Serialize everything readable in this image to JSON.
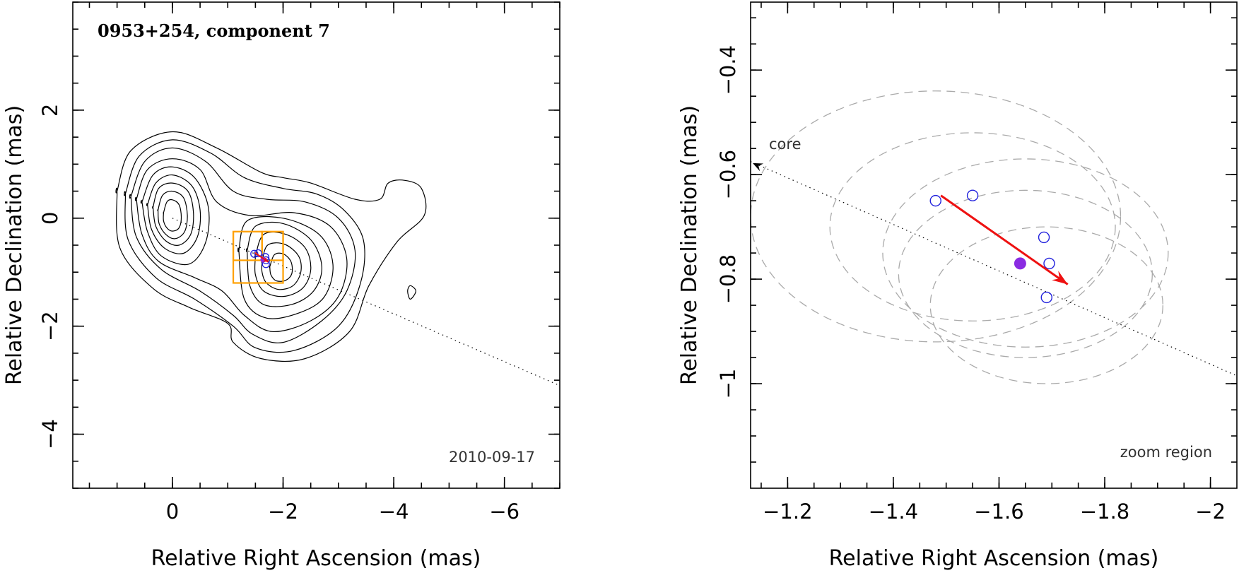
{
  "chart_data": [
    {
      "type": "scatter",
      "title": "0953+254, component 7",
      "date_label": "2010-09-17",
      "xlabel": "Relative Right Ascension (mas)",
      "ylabel": "Relative Declination (mas)",
      "xlim": [
        1.8,
        -7
      ],
      "ylim": [
        -5,
        4
      ],
      "x_ticks": [
        0,
        -2,
        -4,
        -6
      ],
      "x_tick_labels": [
        "0",
        "−2",
        "−4",
        "−6"
      ],
      "y_ticks": [
        2,
        0,
        -2,
        -4
      ],
      "y_tick_labels": [
        "2",
        "0",
        "−2",
        "−4"
      ],
      "jet_axis": {
        "from": [
          0,
          0
        ],
        "to": [
          -7,
          -3.1
        ]
      },
      "contours": [
        {
          "level": 1,
          "points": [
            [
              -4.4,
              -1.35
            ],
            [
              -4.3,
              -1.25
            ],
            [
              -4.25,
              -1.35
            ],
            [
              -4.3,
              -1.5
            ]
          ]
        },
        {
          "level": 1,
          "points": [
            [
              1.0,
              0.5
            ],
            [
              0.75,
              1.25
            ],
            [
              0.0,
              1.6
            ],
            [
              -0.8,
              1.3
            ],
            [
              -1.6,
              0.85
            ],
            [
              -2.0,
              0.75
            ],
            [
              -2.5,
              0.65
            ],
            [
              -3.3,
              0.35
            ],
            [
              -3.75,
              0.35
            ],
            [
              -3.9,
              0.65
            ],
            [
              -4.2,
              0.7
            ],
            [
              -4.5,
              0.55
            ],
            [
              -4.55,
              0.05
            ],
            [
              -4.05,
              -0.45
            ],
            [
              -3.55,
              -1.25
            ],
            [
              -3.2,
              -2.1
            ],
            [
              -2.4,
              -2.6
            ],
            [
              -1.6,
              -2.6
            ],
            [
              -1.1,
              -2.3
            ],
            [
              -1.0,
              -1.95
            ],
            [
              -0.3,
              -1.65
            ],
            [
              0.35,
              -1.3
            ],
            [
              0.95,
              -0.55
            ],
            [
              1.0,
              0.5
            ]
          ]
        },
        {
          "level": 2,
          "points": [
            [
              0.85,
              0.45
            ],
            [
              0.6,
              1.15
            ],
            [
              0.0,
              1.45
            ],
            [
              -0.7,
              1.2
            ],
            [
              -1.3,
              0.75
            ],
            [
              -2.0,
              0.55
            ],
            [
              -2.6,
              0.45
            ],
            [
              -3.1,
              0.15
            ],
            [
              -3.45,
              -0.4
            ],
            [
              -3.4,
              -1.2
            ],
            [
              -3.0,
              -2.0
            ],
            [
              -2.2,
              -2.45
            ],
            [
              -1.5,
              -2.4
            ],
            [
              -1.1,
              -2.0
            ],
            [
              -0.4,
              -1.5
            ],
            [
              0.3,
              -1.1
            ],
            [
              0.8,
              -0.4
            ],
            [
              0.85,
              0.45
            ]
          ]
        },
        {
          "level": 3,
          "points": [
            [
              0.75,
              0.4
            ],
            [
              0.5,
              1.05
            ],
            [
              0.0,
              1.3
            ],
            [
              -0.6,
              1.05
            ],
            [
              -1.1,
              0.5
            ],
            [
              -1.7,
              0.35
            ],
            [
              -2.4,
              0.3
            ],
            [
              -3.0,
              0.0
            ],
            [
              -3.3,
              -0.6
            ],
            [
              -3.15,
              -1.35
            ],
            [
              -2.7,
              -1.9
            ],
            [
              -2.0,
              -2.3
            ],
            [
              -1.45,
              -2.15
            ],
            [
              -1.1,
              -1.8
            ],
            [
              -0.5,
              -1.35
            ],
            [
              0.2,
              -0.95
            ],
            [
              0.65,
              -0.35
            ],
            [
              0.75,
              0.4
            ]
          ]
        },
        {
          "level": 4,
          "points": [
            [
              0.65,
              0.35
            ],
            [
              0.45,
              0.9
            ],
            [
              0.0,
              1.1
            ],
            [
              -0.5,
              0.9
            ],
            [
              -0.8,
              0.3
            ],
            [
              -1.4,
              0.05
            ],
            [
              -2.2,
              0.1
            ],
            [
              -2.85,
              -0.15
            ],
            [
              -3.15,
              -0.75
            ],
            [
              -3.0,
              -1.45
            ],
            [
              -2.5,
              -1.9
            ],
            [
              -1.8,
              -2.1
            ],
            [
              -1.3,
              -1.8
            ],
            [
              -0.9,
              -1.35
            ],
            [
              -0.4,
              -1.1
            ],
            [
              0.25,
              -0.8
            ],
            [
              0.55,
              -0.3
            ],
            [
              0.65,
              0.35
            ]
          ]
        },
        {
          "level": 5,
          "points": [
            [
              0.55,
              0.3
            ],
            [
              0.35,
              0.8
            ],
            [
              0.0,
              0.95
            ],
            [
              -0.4,
              0.75
            ],
            [
              -0.65,
              0.2
            ],
            [
              -0.6,
              -0.45
            ],
            [
              -0.3,
              -0.85
            ],
            [
              0.2,
              -0.7
            ],
            [
              0.45,
              -0.25
            ],
            [
              0.55,
              0.3
            ]
          ]
        },
        {
          "level": 5,
          "points": [
            [
              -1.2,
              -0.6
            ],
            [
              -1.35,
              -0.05
            ],
            [
              -2.0,
              0.0
            ],
            [
              -2.65,
              -0.3
            ],
            [
              -2.9,
              -0.85
            ],
            [
              -2.75,
              -1.45
            ],
            [
              -2.3,
              -1.75
            ],
            [
              -1.7,
              -1.85
            ],
            [
              -1.3,
              -1.5
            ],
            [
              -1.2,
              -0.6
            ]
          ]
        },
        {
          "level": 6,
          "points": [
            [
              0.45,
              0.25
            ],
            [
              0.3,
              0.65
            ],
            [
              0.0,
              0.8
            ],
            [
              -0.35,
              0.6
            ],
            [
              -0.5,
              0.15
            ],
            [
              -0.45,
              -0.35
            ],
            [
              -0.2,
              -0.65
            ],
            [
              0.15,
              -0.55
            ],
            [
              0.38,
              -0.2
            ],
            [
              0.45,
              0.25
            ]
          ]
        },
        {
          "level": 6,
          "points": [
            [
              -1.35,
              -0.6
            ],
            [
              -1.5,
              -0.15
            ],
            [
              -2.0,
              -0.1
            ],
            [
              -2.5,
              -0.4
            ],
            [
              -2.7,
              -0.9
            ],
            [
              -2.55,
              -1.35
            ],
            [
              -2.15,
              -1.6
            ],
            [
              -1.65,
              -1.6
            ],
            [
              -1.4,
              -1.25
            ],
            [
              -1.35,
              -0.6
            ]
          ]
        },
        {
          "level": 7,
          "points": [
            [
              0.35,
              0.2
            ],
            [
              0.25,
              0.55
            ],
            [
              0.0,
              0.65
            ],
            [
              -0.28,
              0.5
            ],
            [
              -0.38,
              0.1
            ],
            [
              -0.33,
              -0.3
            ],
            [
              -0.12,
              -0.5
            ],
            [
              0.12,
              -0.42
            ],
            [
              0.3,
              -0.15
            ],
            [
              0.35,
              0.2
            ]
          ]
        },
        {
          "level": 7,
          "points": [
            [
              -1.5,
              -0.7
            ],
            [
              -1.65,
              -0.3
            ],
            [
              -2.05,
              -0.3
            ],
            [
              -2.4,
              -0.55
            ],
            [
              -2.5,
              -0.95
            ],
            [
              -2.35,
              -1.3
            ],
            [
              -2.0,
              -1.45
            ],
            [
              -1.65,
              -1.35
            ],
            [
              -1.5,
              -1.05
            ],
            [
              -1.5,
              -0.7
            ]
          ]
        },
        {
          "level": 8,
          "points": [
            [
              0.26,
              0.15
            ],
            [
              0.18,
              0.42
            ],
            [
              0.0,
              0.5
            ],
            [
              -0.2,
              0.38
            ],
            [
              -0.27,
              0.05
            ],
            [
              -0.22,
              -0.25
            ],
            [
              -0.05,
              -0.38
            ],
            [
              0.12,
              -0.3
            ],
            [
              0.24,
              -0.1
            ],
            [
              0.26,
              0.15
            ]
          ]
        },
        {
          "level": 8,
          "points": [
            [
              -1.62,
              -0.8
            ],
            [
              -1.72,
              -0.5
            ],
            [
              -2.02,
              -0.48
            ],
            [
              -2.28,
              -0.7
            ],
            [
              -2.32,
              -1.0
            ],
            [
              -2.18,
              -1.25
            ],
            [
              -1.92,
              -1.32
            ],
            [
              -1.7,
              -1.2
            ],
            [
              -1.62,
              -1.0
            ],
            [
              -1.62,
              -0.8
            ]
          ]
        },
        {
          "level": 9,
          "points": [
            [
              0.16,
              0.1
            ],
            [
              0.1,
              0.3
            ],
            [
              0.0,
              0.34
            ],
            [
              -0.12,
              0.25
            ],
            [
              -0.16,
              0.02
            ],
            [
              -0.12,
              -0.18
            ],
            [
              0.0,
              -0.24
            ],
            [
              0.1,
              -0.18
            ],
            [
              0.16,
              -0.05
            ],
            [
              0.16,
              0.1
            ]
          ]
        },
        {
          "level": 9,
          "points": [
            [
              -1.76,
              -0.9
            ],
            [
              -1.84,
              -0.68
            ],
            [
              -2.0,
              -0.66
            ],
            [
              -2.14,
              -0.8
            ],
            [
              -2.16,
              -1.02
            ],
            [
              -2.05,
              -1.15
            ],
            [
              -1.88,
              -1.16
            ],
            [
              -1.78,
              -1.05
            ],
            [
              -1.76,
              -0.9
            ]
          ]
        }
      ],
      "zoom_boxes": [
        {
          "x": [
            -1.1,
            -2.0
          ],
          "y": [
            -0.25,
            -1.2
          ]
        },
        {
          "x": [
            -1.1,
            -1.62
          ],
          "y": [
            -0.25,
            -0.78
          ]
        },
        {
          "x": [
            -1.62,
            -2.0
          ],
          "y": [
            -0.25,
            -0.78
          ]
        }
      ],
      "points": [
        [
          -1.48,
          -0.66
        ],
        [
          -1.55,
          -0.65
        ],
        [
          -1.68,
          -0.72
        ],
        [
          -1.69,
          -0.78
        ],
        [
          -1.69,
          -0.85
        ]
      ],
      "mean_point": [
        -1.64,
        -0.77
      ],
      "motion_vector": {
        "from": [
          -1.49,
          -0.64
        ],
        "to": [
          -1.73,
          -0.81
        ]
      }
    },
    {
      "type": "scatter",
      "label_core": "core",
      "label_region": "zoom region",
      "xlabel": "Relative Right Ascension (mas)",
      "ylabel": "Relative Declination (mas)",
      "xlim": [
        -1.13,
        -2.05
      ],
      "ylim": [
        -1.2,
        -0.27
      ],
      "x_ticks": [
        -1.2,
        -1.4,
        -1.6,
        -1.8,
        -2.0
      ],
      "x_tick_labels": [
        "−1.2",
        "−1.4",
        "−1.6",
        "−1.8",
        "−2"
      ],
      "y_ticks": [
        -0.4,
        -0.6,
        -0.8,
        -1.0
      ],
      "y_tick_labels": [
        "−0.4",
        "−0.6",
        "−0.8",
        "−1"
      ],
      "points": [
        [
          -1.48,
          -0.65
        ],
        [
          -1.55,
          -0.64
        ],
        [
          -1.685,
          -0.72
        ],
        [
          -1.695,
          -0.77
        ],
        [
          -1.69,
          -0.835
        ]
      ],
      "mean_point": [
        -1.64,
        -0.77
      ],
      "motion_vector": {
        "from": [
          -1.49,
          -0.64
        ],
        "to": [
          -1.73,
          -0.81
        ]
      },
      "jet_axis": {
        "from": [
          -1.13,
          -0.575
        ],
        "to": [
          -2.05,
          -0.985
        ]
      },
      "core_arrow": {
        "from": [
          -1.19,
          -0.605
        ],
        "to": [
          -1.13,
          -0.578
        ]
      },
      "error_ellipses": [
        {
          "cx": -1.48,
          "cy": -0.68,
          "rx": 0.35,
          "ry": 0.24
        },
        {
          "cx": -1.55,
          "cy": -0.7,
          "rx": 0.27,
          "ry": 0.18
        },
        {
          "cx": -1.65,
          "cy": -0.75,
          "rx": 0.27,
          "ry": 0.18
        },
        {
          "cx": -1.65,
          "cy": -0.79,
          "rx": 0.24,
          "ry": 0.16
        },
        {
          "cx": -1.69,
          "cy": -0.85,
          "rx": 0.22,
          "ry": 0.15
        }
      ],
      "colors": {
        "points": "#2222dd",
        "mean_point": "#8a2be2",
        "vector": "#ee1111",
        "ellipses": "#aaaaaa",
        "zoom_box": "#ffa000"
      }
    }
  ]
}
